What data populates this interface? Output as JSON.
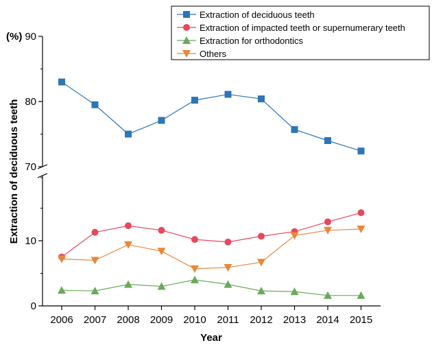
{
  "chart_data": {
    "type": "line",
    "xlabel": "Year",
    "ylabel": "Extraction of deciduous teeth",
    "unit_label": "(%)",
    "x": [
      "2006",
      "2007",
      "2008",
      "2009",
      "2010",
      "2011",
      "2012",
      "2013",
      "2014",
      "2015"
    ],
    "y_axis_break": true,
    "y_upper_ticks": [
      "70",
      "80",
      "90"
    ],
    "y_lower_ticks": [
      "0",
      "10"
    ],
    "ylim_upper": [
      70,
      90
    ],
    "ylim_lower": [
      0,
      20
    ],
    "legend_position": "top-right",
    "series": [
      {
        "name": "Extraction of deciduous teeth",
        "marker": "square",
        "color": "#2e75b6",
        "values": [
          83.0,
          79.5,
          75.0,
          77.1,
          80.2,
          81.1,
          80.4,
          75.7,
          74.0,
          72.4
        ]
      },
      {
        "name": "Extraction of impacted teeth or supernumerary teeth",
        "marker": "circle",
        "color": "#e8485c",
        "values": [
          7.5,
          11.3,
          12.3,
          11.6,
          10.2,
          9.8,
          10.7,
          11.4,
          12.9,
          14.3
        ]
      },
      {
        "name": "Extraction for orthodontics",
        "marker": "triangle-up",
        "color": "#6aaa5a",
        "values": [
          2.4,
          2.3,
          3.3,
          3.0,
          4.0,
          3.3,
          2.3,
          2.2,
          1.6,
          1.6
        ]
      },
      {
        "name": "Others",
        "marker": "triangle-down",
        "color": "#e8873a",
        "values": [
          7.2,
          7.0,
          9.4,
          8.4,
          5.7,
          5.9,
          6.7,
          10.8,
          11.6,
          11.8
        ]
      }
    ]
  }
}
